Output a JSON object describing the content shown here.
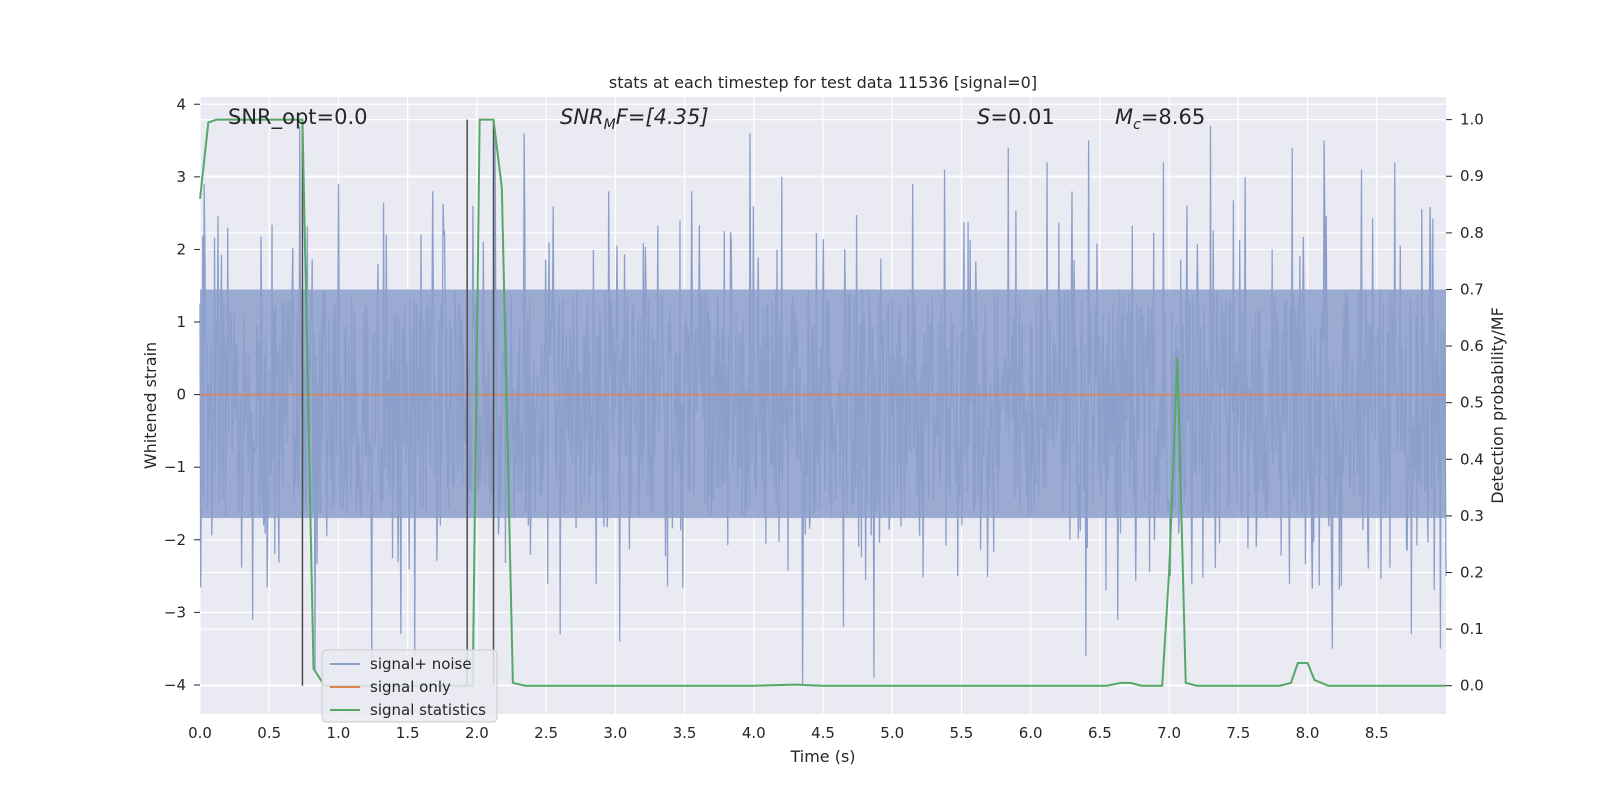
{
  "colors": {
    "plot_background": "#EAEAF2",
    "grid": "#FFFFFF",
    "signal_noise": "#8C9FCB",
    "signal_only": "#DD8452",
    "signal_statistics": "#55A868",
    "marker_lines": "#4D4D4D",
    "text": "#262626"
  },
  "chart_data": {
    "type": "line",
    "title": "stats at each timestep for test data 11536 [signal=0]",
    "xlabel": "Time (s)",
    "ylabel_left": "Whitened strain",
    "ylabel_right": "Detection probability/MF",
    "xlim": [
      0,
      9.0
    ],
    "ylim_left": [
      -4.4,
      4.1
    ],
    "ylim_right": [
      -0.05,
      1.04
    ],
    "x_ticks": [
      "0.0",
      "0.5",
      "1.0",
      "1.5",
      "2.0",
      "2.5",
      "3.0",
      "3.5",
      "4.0",
      "4.5",
      "5.0",
      "5.5",
      "6.0",
      "6.5",
      "7.0",
      "7.5",
      "8.0",
      "8.5"
    ],
    "y_ticks_left": [
      "−4",
      "−3",
      "−2",
      "−1",
      "0",
      "1",
      "2",
      "3",
      "4"
    ],
    "y_ticks_right": [
      "0.0",
      "0.1",
      "0.2",
      "0.3",
      "0.4",
      "0.5",
      "0.6",
      "0.7",
      "0.8",
      "0.9",
      "1.0"
    ],
    "grid": true,
    "annotations": {
      "snr_opt": "SNR_opt=0.0",
      "snr_mf_prefix": "SNR",
      "snr_mf_sub": "M",
      "snr_mf_suffix": "F=[4.35]",
      "s_label": "S",
      "s_value": "=0.01",
      "mc_label": "M",
      "mc_sub": "c",
      "mc_value": "=8.65"
    },
    "legend": {
      "position": "lower-left",
      "entries": [
        "signal+ noise",
        "signal only",
        "signal statistics"
      ]
    },
    "vertical_markers": [
      0.74,
      1.93,
      2.12
    ],
    "series": [
      {
        "name": "signal+ noise",
        "axis": "left",
        "style": "noisy-band",
        "core_range": [
          -1.7,
          1.45
        ],
        "peaks": [
          [
            0.03,
            2.9
          ],
          [
            0.2,
            2.3
          ],
          [
            0.38,
            -3.1
          ],
          [
            0.72,
            3.7
          ],
          [
            0.83,
            -3.8
          ],
          [
            1.0,
            2.9
          ],
          [
            1.24,
            -3.7
          ],
          [
            1.45,
            -3.3
          ],
          [
            1.55,
            -3.6
          ],
          [
            1.68,
            2.8
          ],
          [
            1.97,
            2.6
          ],
          [
            2.13,
            3.6
          ],
          [
            2.34,
            3.6
          ],
          [
            2.6,
            -3.3
          ],
          [
            2.95,
            2.8
          ],
          [
            3.03,
            -3.4
          ],
          [
            3.55,
            2.8
          ],
          [
            3.97,
            3.6
          ],
          [
            4.2,
            3.0
          ],
          [
            4.35,
            -4.0
          ],
          [
            4.65,
            -3.2
          ],
          [
            4.87,
            -3.9
          ],
          [
            5.15,
            2.9
          ],
          [
            5.38,
            3.1
          ],
          [
            5.84,
            3.4
          ],
          [
            6.12,
            3.2
          ],
          [
            6.3,
            2.8
          ],
          [
            6.42,
            3.5
          ],
          [
            6.4,
            -3.6
          ],
          [
            6.63,
            -3.1
          ],
          [
            6.96,
            3.2
          ],
          [
            7.3,
            3.7
          ],
          [
            7.55,
            3.0
          ],
          [
            7.89,
            3.4
          ],
          [
            8.12,
            3.5
          ],
          [
            8.18,
            -3.5
          ],
          [
            8.39,
            3.1
          ],
          [
            8.63,
            3.2
          ],
          [
            8.75,
            -3.3
          ],
          [
            8.96,
            -3.5
          ]
        ]
      },
      {
        "name": "signal only",
        "axis": "left",
        "x": [
          0,
          9.0
        ],
        "y": [
          0,
          0
        ]
      },
      {
        "name": "signal statistics",
        "axis": "right",
        "x": [
          0.0,
          0.06,
          0.12,
          0.3,
          0.55,
          0.7,
          0.74,
          0.82,
          0.9,
          1.1,
          1.5,
          1.8,
          1.9,
          1.97,
          2.02,
          2.12,
          2.18,
          2.26,
          2.35,
          3.0,
          4.0,
          4.3,
          4.5,
          6.0,
          6.55,
          6.65,
          6.72,
          6.8,
          6.95,
          7.0,
          7.06,
          7.12,
          7.2,
          7.8,
          7.88,
          7.93,
          8.0,
          8.05,
          8.15,
          8.3,
          9.0
        ],
        "y": [
          0.86,
          0.995,
          1.0,
          1.0,
          1.0,
          1.0,
          1.0,
          0.03,
          0.0,
          0.0,
          0.0,
          0.0,
          0.0,
          0.0,
          1.0,
          1.0,
          0.88,
          0.005,
          0.0,
          0.0,
          0.0,
          0.002,
          0.0,
          0.0,
          0.0,
          0.005,
          0.005,
          0.0,
          0.0,
          0.2,
          0.58,
          0.005,
          0.0,
          0.0,
          0.005,
          0.04,
          0.04,
          0.01,
          0.0,
          0.0,
          0.0
        ]
      }
    ]
  }
}
